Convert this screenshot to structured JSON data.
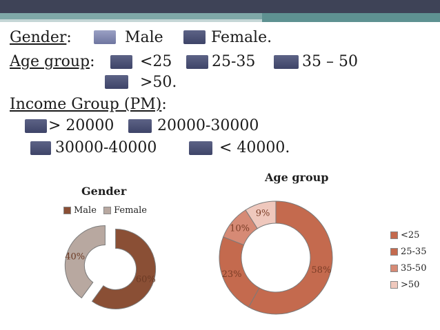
{
  "slide": {
    "gender_label": "Gender",
    "gender_colon": ":",
    "gender_male": "Male",
    "gender_female": "Female.",
    "age_label": "Age group",
    "age_colon": ":",
    "age_opt1": "<25",
    "age_opt2": "25-35",
    "age_opt3": "35 – 50",
    "age_opt4": ">50.",
    "income_label": "Income Group (PM)",
    "income_colon": ":",
    "income_opt1": "> 20000",
    "income_opt2": "20000-30000",
    "income_opt3": "30000-40000",
    "income_opt4": "< 40000."
  },
  "colors": {
    "header_bar": "#3e4357",
    "accent_teal": "#7fa8a8",
    "male": "#8a4f35",
    "female": "#b8a8a0",
    "age_lt25": "#c46a4e",
    "age_25_35": "#c46a4e",
    "age_35_50": "#d68a75",
    "age_gt50": "#efc8bd"
  },
  "chart_data": [
    {
      "type": "pie",
      "title": "Gender",
      "legend": [
        "Male",
        "Female"
      ],
      "legend_position": "top",
      "categories": [
        "Male",
        "Female"
      ],
      "values": [
        60,
        40
      ],
      "labels": [
        "60%",
        "40%"
      ],
      "style": "exploded-doughnut"
    },
    {
      "type": "pie",
      "title": "Age group",
      "legend": [
        "<25",
        "25-35",
        "35-50",
        ">50"
      ],
      "legend_position": "right",
      "categories": [
        "<25",
        "25-35",
        "35-50",
        ">50"
      ],
      "values": [
        58,
        23,
        10,
        9
      ],
      "labels": [
        "58%",
        "23%",
        "10%",
        "9%"
      ],
      "style": "doughnut"
    }
  ]
}
